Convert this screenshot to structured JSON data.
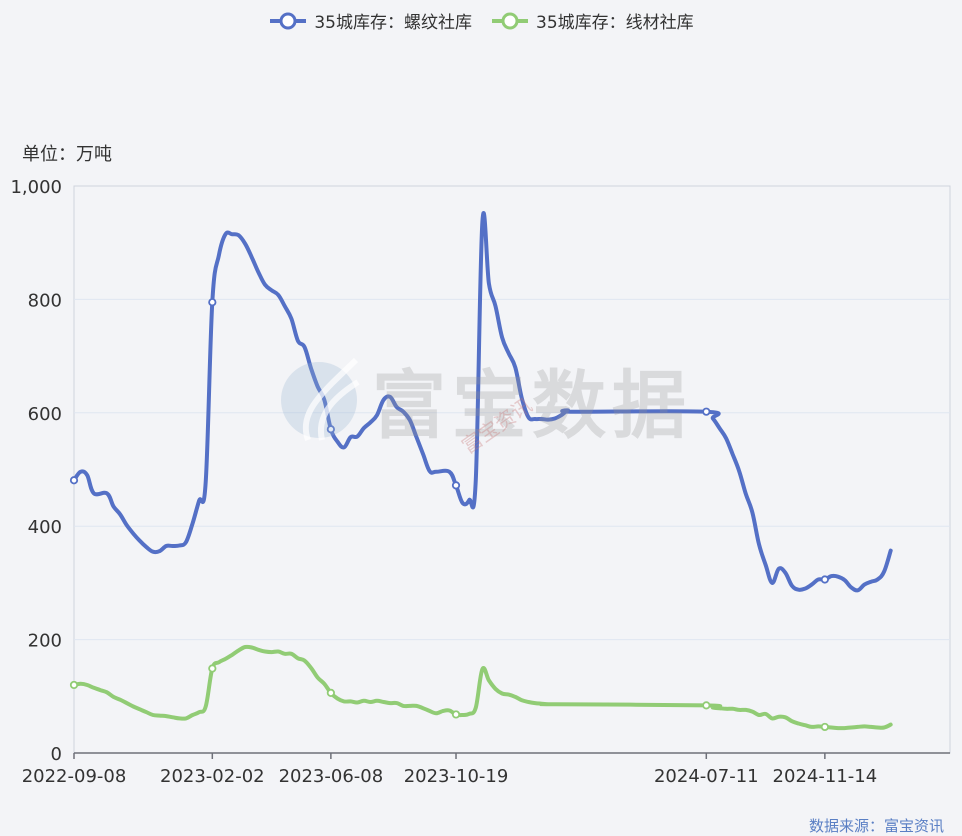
{
  "legend": {
    "series1": "35城库存：螺纹社库",
    "series2": "35城库存：线材社库"
  },
  "unit_label": "单位：万吨",
  "source": "数据来源：富宝资讯",
  "watermark": {
    "main": "富宝数据",
    "sub": "富宝资讯"
  },
  "colors": {
    "series1": "#5470c6",
    "series2": "#91cc75",
    "axis": "#6e7079",
    "grid": "#e0e6f1"
  },
  "chart_data": {
    "type": "line",
    "ylim": [
      0,
      1000
    ],
    "yticks": [
      0,
      200,
      400,
      600,
      800,
      1000
    ],
    "ytick_labels": [
      "0",
      "200",
      "400",
      "600",
      "800",
      "1,000"
    ],
    "xlim": [
      "2022-09-08",
      "2025-03-27"
    ],
    "xticks": [
      "2022-09-08",
      "2023-02-02",
      "2023-06-08",
      "2023-10-19",
      "2024-07-11",
      "2024-11-14"
    ],
    "series": [
      {
        "name": "35城库存：螺纹社库",
        "color": "#5470c6",
        "points": [
          [
            "2022-09-08",
            481
          ],
          [
            "2022-09-15",
            496
          ],
          [
            "2022-09-22",
            490
          ],
          [
            "2022-09-29",
            458
          ],
          [
            "2022-10-13",
            458
          ],
          [
            "2022-10-20",
            435
          ],
          [
            "2022-10-27",
            421
          ],
          [
            "2022-11-03",
            402
          ],
          [
            "2022-11-10",
            387
          ],
          [
            "2022-11-17",
            374
          ],
          [
            "2022-11-24",
            363
          ],
          [
            "2022-12-01",
            355
          ],
          [
            "2022-12-08",
            356
          ],
          [
            "2022-12-15",
            365
          ],
          [
            "2022-12-22",
            365
          ],
          [
            "2022-12-29",
            366
          ],
          [
            "2023-01-05",
            372
          ],
          [
            "2023-01-12",
            405
          ],
          [
            "2023-01-19",
            445
          ],
          [
            "2023-01-26",
            478
          ],
          [
            "2023-02-02",
            795
          ],
          [
            "2023-02-09",
            878
          ],
          [
            "2023-02-16",
            915
          ],
          [
            "2023-02-23",
            915
          ],
          [
            "2023-03-02",
            913
          ],
          [
            "2023-03-09",
            898
          ],
          [
            "2023-03-16",
            874
          ],
          [
            "2023-03-23",
            848
          ],
          [
            "2023-03-30",
            826
          ],
          [
            "2023-04-06",
            816
          ],
          [
            "2023-04-13",
            808
          ],
          [
            "2023-04-20",
            788
          ],
          [
            "2023-04-27",
            766
          ],
          [
            "2023-05-04",
            727
          ],
          [
            "2023-05-11",
            716
          ],
          [
            "2023-05-18",
            678
          ],
          [
            "2023-05-25",
            646
          ],
          [
            "2023-06-01",
            623
          ],
          [
            "2023-06-08",
            571
          ],
          [
            "2023-06-15",
            549
          ],
          [
            "2023-06-22",
            539
          ],
          [
            "2023-06-29",
            557
          ],
          [
            "2023-07-06",
            558
          ],
          [
            "2023-07-13",
            573
          ],
          [
            "2023-07-20",
            583
          ],
          [
            "2023-07-27",
            596
          ],
          [
            "2023-08-03",
            623
          ],
          [
            "2023-08-10",
            628
          ],
          [
            "2023-08-17",
            610
          ],
          [
            "2023-08-24",
            602
          ],
          [
            "2023-08-31",
            587
          ],
          [
            "2023-09-07",
            557
          ],
          [
            "2023-09-14",
            527
          ],
          [
            "2023-09-21",
            497
          ],
          [
            "2023-09-28",
            496
          ],
          [
            "2023-10-12",
            496
          ],
          [
            "2023-10-19",
            472
          ],
          [
            "2023-10-26",
            441
          ],
          [
            "2023-11-02",
            446
          ],
          [
            "2023-11-09",
            482
          ],
          [
            "2023-11-16",
            937
          ],
          [
            "2023-11-23",
            828
          ],
          [
            "2023-11-30",
            788
          ],
          [
            "2023-12-07",
            733
          ],
          [
            "2023-12-14",
            705
          ],
          [
            "2023-12-21",
            680
          ],
          [
            "2023-12-28",
            625
          ],
          [
            "2024-01-04",
            592
          ],
          [
            "2024-01-11",
            589
          ],
          [
            "2024-01-18",
            589
          ],
          [
            "2024-01-25",
            588
          ],
          [
            "2024-02-01",
            590
          ],
          [
            "2024-02-08",
            596
          ],
          [
            "2024-02-15",
            604
          ],
          [
            "2024-02-22",
            602
          ],
          [
            "2024-07-11",
            602
          ],
          [
            "2024-07-18",
            590
          ],
          [
            "2024-07-25",
            573
          ],
          [
            "2024-08-01",
            555
          ],
          [
            "2024-08-08",
            527
          ],
          [
            "2024-08-15",
            497
          ],
          [
            "2024-08-22",
            457
          ],
          [
            "2024-08-29",
            424
          ],
          [
            "2024-09-05",
            368
          ],
          [
            "2024-09-12",
            332
          ],
          [
            "2024-09-19",
            300
          ],
          [
            "2024-09-26",
            325
          ],
          [
            "2024-10-03",
            318
          ],
          [
            "2024-10-10",
            295
          ],
          [
            "2024-10-17",
            288
          ],
          [
            "2024-10-24",
            290
          ],
          [
            "2024-10-31",
            297
          ],
          [
            "2024-11-07",
            306
          ],
          [
            "2024-11-14",
            306
          ],
          [
            "2024-11-21",
            312
          ],
          [
            "2024-11-28",
            311
          ],
          [
            "2024-12-05",
            305
          ],
          [
            "2024-12-12",
            292
          ],
          [
            "2024-12-19",
            287
          ],
          [
            "2024-12-26",
            297
          ],
          [
            "2025-01-02",
            302
          ],
          [
            "2025-01-09",
            306
          ],
          [
            "2025-01-16",
            320
          ],
          [
            "2025-01-23",
            357
          ]
        ]
      },
      {
        "name": "35城库存：线材社库",
        "color": "#91cc75",
        "points": [
          [
            "2022-09-08",
            120
          ],
          [
            "2022-09-15",
            122
          ],
          [
            "2022-09-22",
            120
          ],
          [
            "2022-09-29",
            115
          ],
          [
            "2022-10-06",
            111
          ],
          [
            "2022-10-13",
            107
          ],
          [
            "2022-10-20",
            99
          ],
          [
            "2022-10-27",
            94
          ],
          [
            "2022-11-03",
            88
          ],
          [
            "2022-11-10",
            82
          ],
          [
            "2022-11-17",
            77
          ],
          [
            "2022-11-24",
            72
          ],
          [
            "2022-12-01",
            67
          ],
          [
            "2022-12-08",
            66
          ],
          [
            "2022-12-15",
            65
          ],
          [
            "2022-12-22",
            63
          ],
          [
            "2022-12-29",
            61
          ],
          [
            "2023-01-05",
            61
          ],
          [
            "2023-01-12",
            67
          ],
          [
            "2023-01-19",
            72
          ],
          [
            "2023-01-26",
            82
          ],
          [
            "2023-02-02",
            149
          ],
          [
            "2023-02-09",
            160
          ],
          [
            "2023-02-16",
            166
          ],
          [
            "2023-02-23",
            173
          ],
          [
            "2023-03-02",
            181
          ],
          [
            "2023-03-09",
            187
          ],
          [
            "2023-03-16",
            186
          ],
          [
            "2023-03-23",
            182
          ],
          [
            "2023-03-30",
            179
          ],
          [
            "2023-04-06",
            178
          ],
          [
            "2023-04-13",
            179
          ],
          [
            "2023-04-20",
            175
          ],
          [
            "2023-04-27",
            175
          ],
          [
            "2023-05-04",
            167
          ],
          [
            "2023-05-11",
            163
          ],
          [
            "2023-05-18",
            150
          ],
          [
            "2023-05-25",
            133
          ],
          [
            "2023-06-01",
            122
          ],
          [
            "2023-06-08",
            106
          ],
          [
            "2023-06-15",
            96
          ],
          [
            "2023-06-22",
            91
          ],
          [
            "2023-06-29",
            91
          ],
          [
            "2023-07-06",
            89
          ],
          [
            "2023-07-13",
            92
          ],
          [
            "2023-07-20",
            90
          ],
          [
            "2023-07-27",
            92
          ],
          [
            "2023-08-03",
            90
          ],
          [
            "2023-08-10",
            88
          ],
          [
            "2023-08-17",
            88
          ],
          [
            "2023-08-24",
            83
          ],
          [
            "2023-08-31",
            83
          ],
          [
            "2023-09-07",
            83
          ],
          [
            "2023-09-14",
            79
          ],
          [
            "2023-09-21",
            74
          ],
          [
            "2023-09-28",
            70
          ],
          [
            "2023-10-05",
            74
          ],
          [
            "2023-10-12",
            75
          ],
          [
            "2023-10-19",
            68
          ],
          [
            "2023-10-26",
            67
          ],
          [
            "2023-11-02",
            69
          ],
          [
            "2023-11-09",
            80
          ],
          [
            "2023-11-16",
            148
          ],
          [
            "2023-11-23",
            128
          ],
          [
            "2023-11-30",
            113
          ],
          [
            "2023-12-07",
            105
          ],
          [
            "2023-12-14",
            103
          ],
          [
            "2023-12-21",
            99
          ],
          [
            "2023-12-28",
            93
          ],
          [
            "2024-01-04",
            90
          ],
          [
            "2024-01-11",
            88
          ],
          [
            "2024-01-18",
            87
          ],
          [
            "2024-01-25",
            86
          ],
          [
            "2024-02-01",
            86
          ],
          [
            "2024-07-11",
            84
          ],
          [
            "2024-07-18",
            80
          ],
          [
            "2024-07-25",
            79
          ],
          [
            "2024-08-01",
            78
          ],
          [
            "2024-08-08",
            78
          ],
          [
            "2024-08-15",
            76
          ],
          [
            "2024-08-22",
            76
          ],
          [
            "2024-08-29",
            73
          ],
          [
            "2024-09-05",
            67
          ],
          [
            "2024-09-12",
            69
          ],
          [
            "2024-09-19",
            61
          ],
          [
            "2024-09-26",
            64
          ],
          [
            "2024-10-03",
            63
          ],
          [
            "2024-10-10",
            56
          ],
          [
            "2024-10-17",
            52
          ],
          [
            "2024-10-24",
            49
          ],
          [
            "2024-10-31",
            46
          ],
          [
            "2024-11-07",
            47
          ],
          [
            "2024-11-14",
            46
          ],
          [
            "2024-11-21",
            45
          ],
          [
            "2024-11-28",
            44
          ],
          [
            "2024-12-05",
            44
          ],
          [
            "2024-12-12",
            45
          ],
          [
            "2024-12-19",
            46
          ],
          [
            "2024-12-26",
            47
          ],
          [
            "2025-01-02",
            46
          ],
          [
            "2025-01-09",
            45
          ],
          [
            "2025-01-16",
            45
          ],
          [
            "2025-01-23",
            50
          ]
        ]
      }
    ]
  }
}
